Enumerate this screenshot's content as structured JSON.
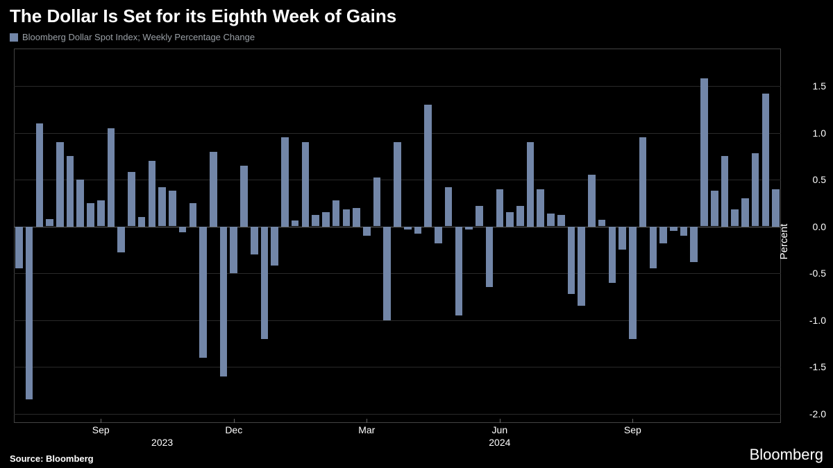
{
  "title": "The Dollar Is Set for its Eighth Week of Gains",
  "legend_label": "Bloomberg Dollar Spot Index; Weekly Percentage Change",
  "source": "Source: Bloomberg",
  "brand": "Bloomberg",
  "y_axis_title": "Percent",
  "chart": {
    "type": "bar",
    "bar_color": "#7286a8",
    "background_color": "#000000",
    "grid_color": "#2a2a2a",
    "zero_line_color": "#666666",
    "text_color": "#ffffff",
    "ylim": [
      -2.1,
      1.9
    ],
    "yticks": [
      -2.0,
      -1.5,
      -1.0,
      -0.5,
      0.0,
      0.5,
      1.0,
      1.5
    ],
    "ytick_labels": [
      "-2.0",
      "-1.5",
      "-1.0",
      "-0.5",
      "0.0",
      "0.5",
      "1.0",
      "1.5"
    ],
    "x_months": [
      {
        "label": "Sep",
        "index": 8
      },
      {
        "label": "Dec",
        "index": 21
      },
      {
        "label": "Mar",
        "index": 34
      },
      {
        "label": "Jun",
        "index": 47
      },
      {
        "label": "Sep",
        "index": 60
      }
    ],
    "x_years": [
      {
        "label": "2023",
        "index": 14
      },
      {
        "label": "2024",
        "index": 47
      }
    ],
    "values": [
      -0.45,
      -1.85,
      1.1,
      0.08,
      0.9,
      0.75,
      0.5,
      0.25,
      0.28,
      1.05,
      -0.28,
      0.58,
      0.1,
      0.7,
      0.42,
      0.38,
      -0.06,
      0.25,
      -1.4,
      0.8,
      -1.6,
      -0.5,
      0.65,
      -0.3,
      -1.2,
      -0.42,
      0.95,
      0.06,
      0.9,
      0.12,
      0.15,
      0.28,
      0.18,
      0.2,
      -0.1,
      0.52,
      -1.0,
      0.9,
      -0.03,
      -0.08,
      1.3,
      -0.18,
      0.42,
      -0.95,
      -0.03,
      0.22,
      -0.65,
      0.4,
      0.15,
      0.22,
      0.9,
      0.4,
      0.14,
      0.12,
      -0.72,
      -0.85,
      0.55,
      0.07,
      -0.6,
      -0.25,
      -1.2,
      0.95,
      -0.45,
      -0.18,
      -0.05,
      -0.1,
      -0.38,
      1.58,
      0.38,
      0.75,
      0.18,
      0.3,
      0.78,
      1.42,
      0.4
    ]
  }
}
